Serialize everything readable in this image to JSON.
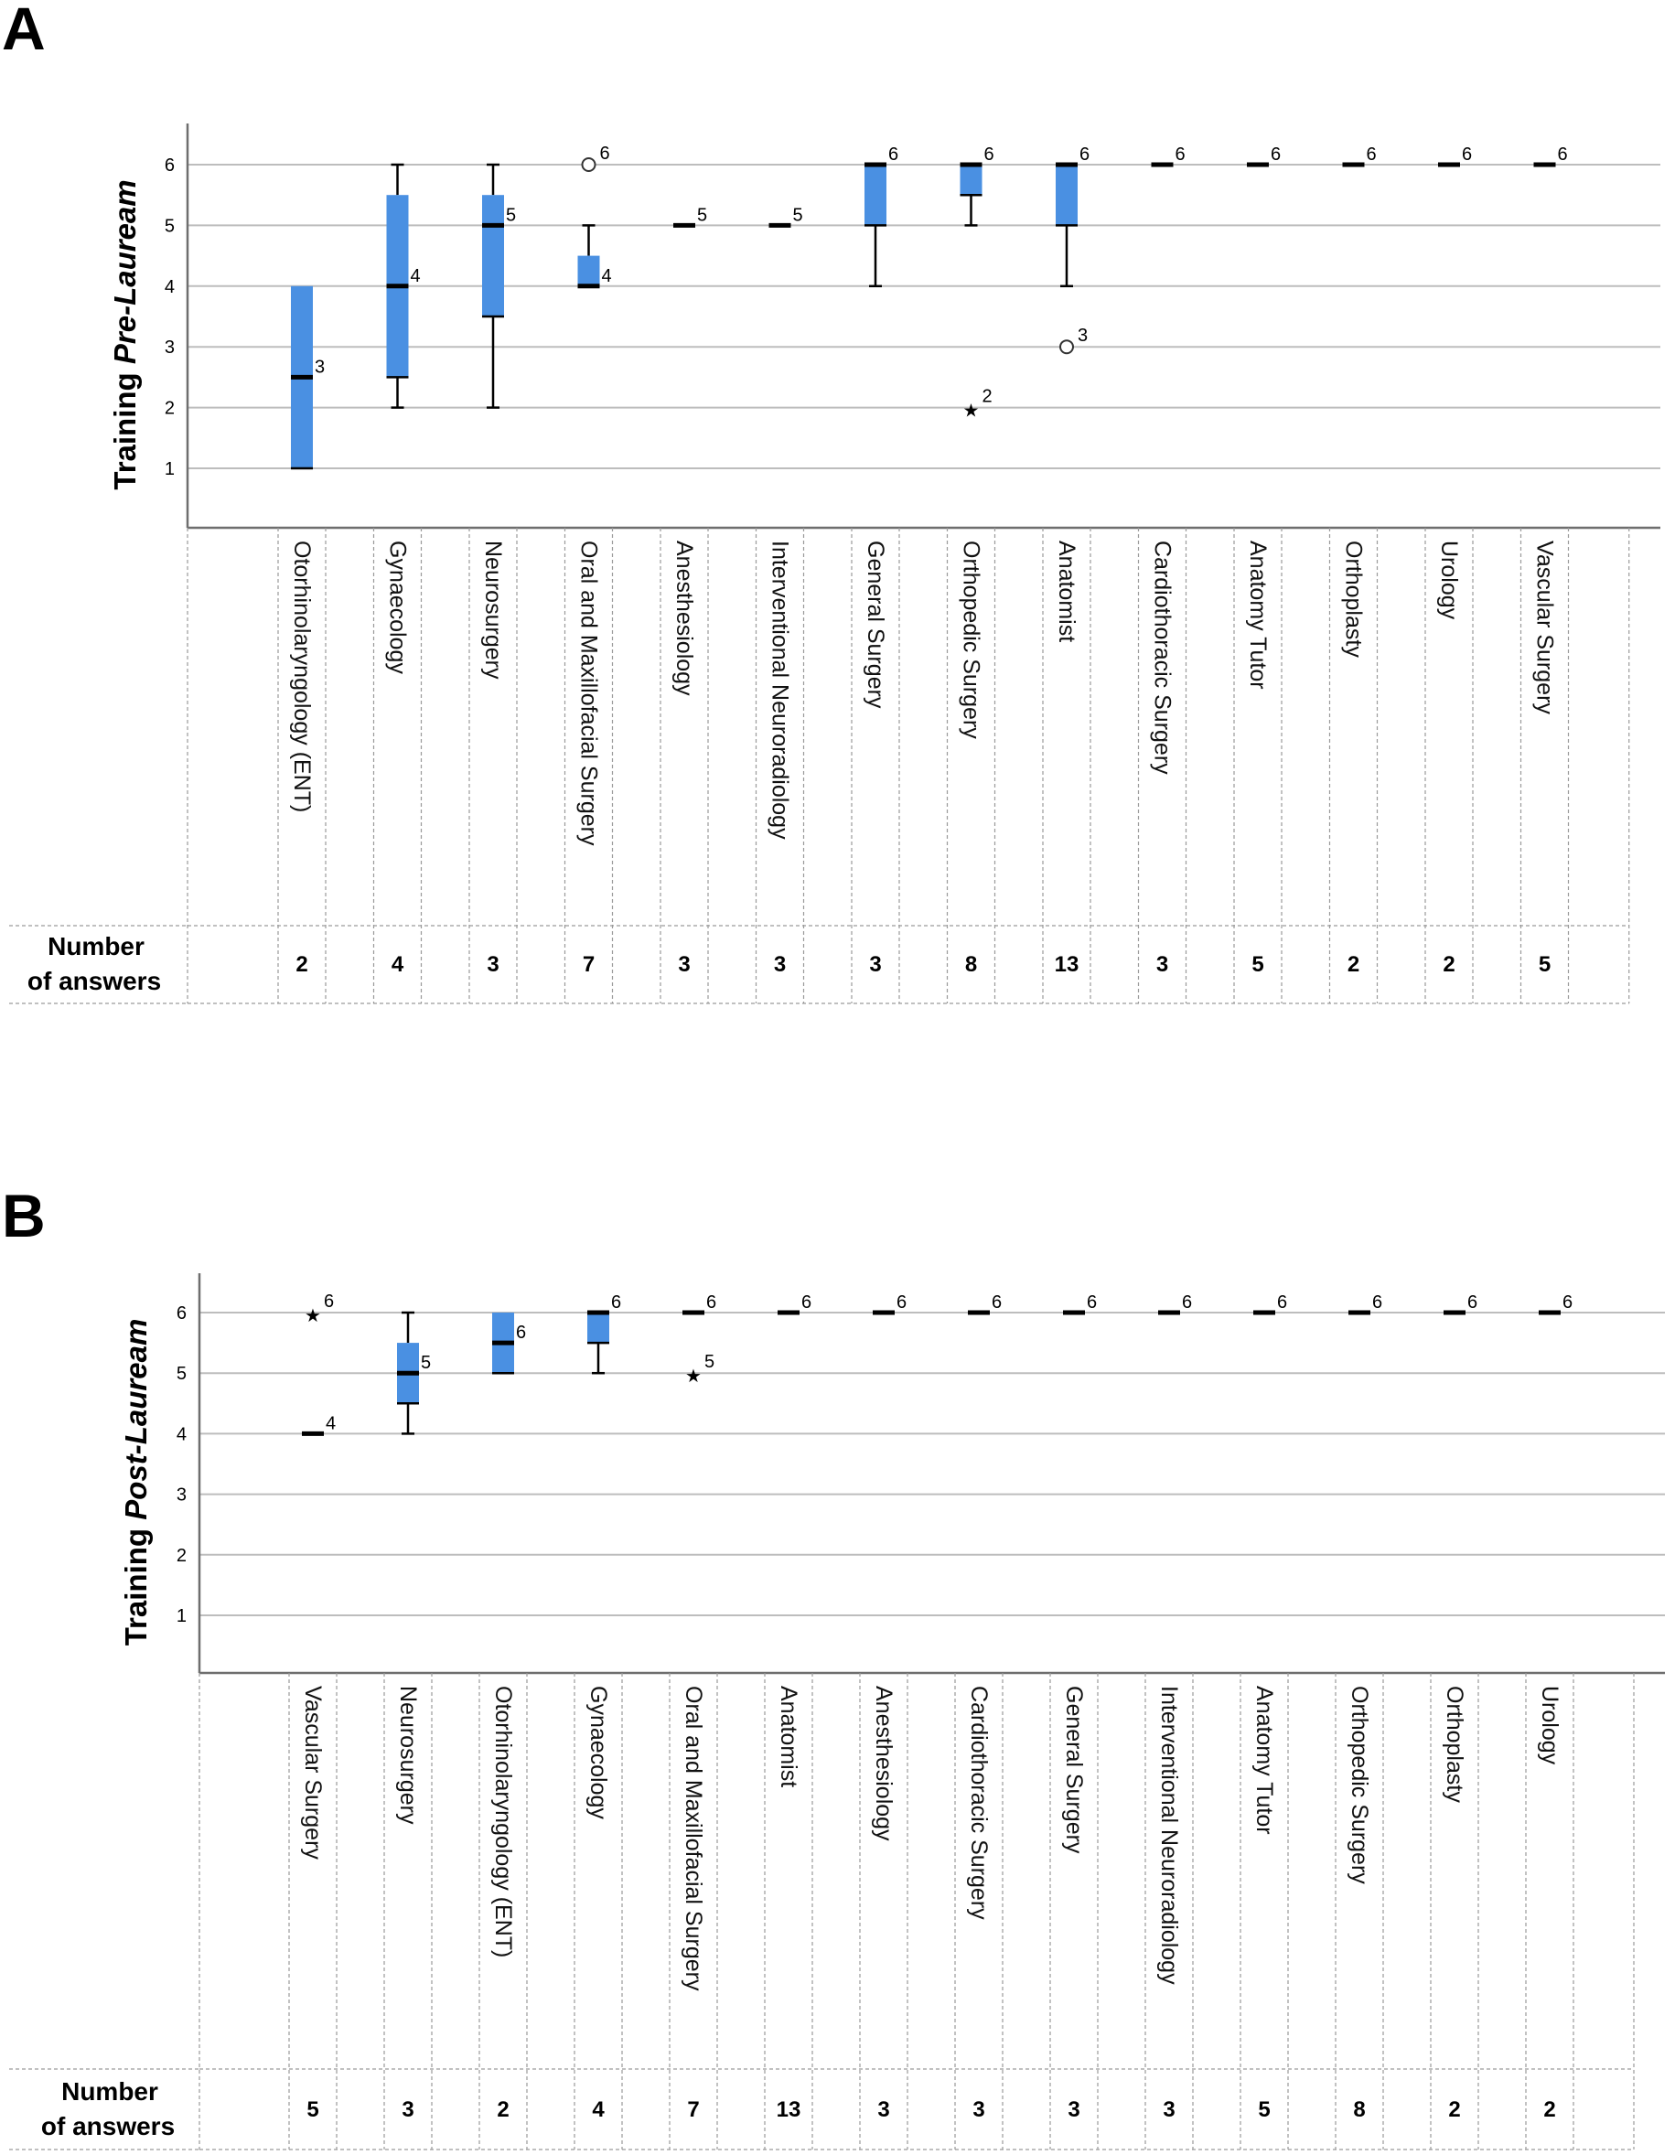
{
  "chart_data": [
    {
      "type": "boxplot",
      "panel": "A",
      "ylabel": "Training",
      "ylabel_italic": "Pre-Lauream",
      "yticks": [
        "1",
        "2",
        "3",
        "4",
        "5",
        "6"
      ],
      "ylim": [
        0,
        6.5
      ],
      "grid": true,
      "count_label_line1": "Number",
      "count_label_line2": "of answers",
      "categories": [
        {
          "name": "Otorhinolaryngology (ENT)",
          "count": "2",
          "q1": 1,
          "median": 2.5,
          "q3": 4,
          "wlo": 1,
          "whi": 4,
          "median_label": "3",
          "outliers": []
        },
        {
          "name": "Gynaecology",
          "count": "4",
          "q1": 2.5,
          "median": 4,
          "q3": 5.5,
          "wlo": 2,
          "whi": 6,
          "median_label": "4",
          "outliers": []
        },
        {
          "name": "Neurosurgery",
          "count": "3",
          "q1": 3.5,
          "median": 5,
          "q3": 5.5,
          "wlo": 2,
          "whi": 6,
          "median_label": "5",
          "outliers": []
        },
        {
          "name": "Oral and Maxillofacial Surgery",
          "count": "7",
          "q1": 4,
          "median": 4,
          "q3": 4.5,
          "wlo": 4,
          "whi": 5,
          "median_label": "4",
          "outliers": [
            {
              "value": 6,
              "shape": "circle",
              "label": "6"
            }
          ]
        },
        {
          "name": "Anesthesiology",
          "count": "3",
          "q1": 5,
          "median": 5,
          "q3": 5,
          "wlo": 5,
          "whi": 5,
          "median_label": "5",
          "outliers": []
        },
        {
          "name": "Interventional Neuroradiology",
          "count": "3",
          "q1": 5,
          "median": 5,
          "q3": 5,
          "wlo": 5,
          "whi": 5,
          "median_label": "5",
          "outliers": []
        },
        {
          "name": "General Surgery",
          "count": "3",
          "q1": 5,
          "median": 6,
          "q3": 6,
          "wlo": 4,
          "whi": 6,
          "median_label": "6",
          "outliers": []
        },
        {
          "name": "Orthopedic Surgery",
          "count": "8",
          "q1": 5.5,
          "median": 6,
          "q3": 6,
          "wlo": 5,
          "whi": 6,
          "median_label": "6",
          "outliers": [
            {
              "value": 2,
              "shape": "star",
              "label": "2"
            }
          ]
        },
        {
          "name": "Anatomist",
          "count": "13",
          "q1": 5,
          "median": 6,
          "q3": 6,
          "wlo": 4,
          "whi": 6,
          "median_label": "6",
          "outliers": [
            {
              "value": 3,
              "shape": "circle",
              "label": "3"
            }
          ]
        },
        {
          "name": "Cardiothoracic Surgery",
          "count": "3",
          "q1": 6,
          "median": 6,
          "q3": 6,
          "wlo": 6,
          "whi": 6,
          "median_label": "6",
          "outliers": []
        },
        {
          "name": "Anatomy Tutor",
          "count": "5",
          "q1": 6,
          "median": 6,
          "q3": 6,
          "wlo": 6,
          "whi": 6,
          "median_label": "6",
          "outliers": []
        },
        {
          "name": "Orthoplasty",
          "count": "2",
          "q1": 6,
          "median": 6,
          "q3": 6,
          "wlo": 6,
          "whi": 6,
          "median_label": "6",
          "outliers": []
        },
        {
          "name": "Urology",
          "count": "2",
          "q1": 6,
          "median": 6,
          "q3": 6,
          "wlo": 6,
          "whi": 6,
          "median_label": "6",
          "outliers": []
        },
        {
          "name": "Vascular Surgery",
          "count": "5",
          "q1": 6,
          "median": 6,
          "q3": 6,
          "wlo": 6,
          "whi": 6,
          "median_label": "6",
          "outliers": []
        }
      ]
    },
    {
      "type": "boxplot",
      "panel": "B",
      "ylabel": "Training",
      "ylabel_italic": "Post-Lauream",
      "yticks": [
        "1",
        "2",
        "3",
        "4",
        "5",
        "6"
      ],
      "ylim": [
        0.3,
        6.6
      ],
      "grid": true,
      "count_label_line1": "Number",
      "count_label_line2": "of answers",
      "categories": [
        {
          "name": "Vascular Surgery",
          "count": "5",
          "q1": 4,
          "median": 4,
          "q3": 4,
          "wlo": 4,
          "whi": 4,
          "median_label": "4",
          "outliers": [
            {
              "value": 6,
              "shape": "star",
              "label": "6"
            }
          ]
        },
        {
          "name": "Neurosurgery",
          "count": "3",
          "q1": 4.5,
          "median": 5,
          "q3": 5.5,
          "wlo": 4,
          "whi": 6,
          "median_label": "5",
          "outliers": []
        },
        {
          "name": "Otorhinolaryngology (ENT)",
          "count": "2",
          "q1": 5,
          "median": 5.5,
          "q3": 6,
          "wlo": 5,
          "whi": 6,
          "median_label": "6",
          "outliers": []
        },
        {
          "name": "Gynaecology",
          "count": "4",
          "q1": 5.5,
          "median": 6,
          "q3": 6,
          "wlo": 5,
          "whi": 6,
          "median_label": "6",
          "outliers": []
        },
        {
          "name": "Oral and Maxillofacial Surgery",
          "count": "7",
          "q1": 6,
          "median": 6,
          "q3": 6,
          "wlo": 6,
          "whi": 6,
          "median_label": "6",
          "outliers": [
            {
              "value": 5,
              "shape": "star",
              "label": "5"
            }
          ]
        },
        {
          "name": "Anatomist",
          "count": "13",
          "q1": 6,
          "median": 6,
          "q3": 6,
          "wlo": 6,
          "whi": 6,
          "median_label": "6",
          "outliers": []
        },
        {
          "name": "Anesthesiology",
          "count": "3",
          "q1": 6,
          "median": 6,
          "q3": 6,
          "wlo": 6,
          "whi": 6,
          "median_label": "6",
          "outliers": []
        },
        {
          "name": "Cardiothoracic Surgery",
          "count": "3",
          "q1": 6,
          "median": 6,
          "q3": 6,
          "wlo": 6,
          "whi": 6,
          "median_label": "6",
          "outliers": []
        },
        {
          "name": "General Surgery",
          "count": "3",
          "q1": 6,
          "median": 6,
          "q3": 6,
          "wlo": 6,
          "whi": 6,
          "median_label": "6",
          "outliers": []
        },
        {
          "name": "Interventional Neuroradiology",
          "count": "3",
          "q1": 6,
          "median": 6,
          "q3": 6,
          "wlo": 6,
          "whi": 6,
          "median_label": "6",
          "outliers": []
        },
        {
          "name": "Anatomy Tutor",
          "count": "5",
          "q1": 6,
          "median": 6,
          "q3": 6,
          "wlo": 6,
          "whi": 6,
          "median_label": "6",
          "outliers": []
        },
        {
          "name": "Orthopedic Surgery",
          "count": "8",
          "q1": 6,
          "median": 6,
          "q3": 6,
          "wlo": 6,
          "whi": 6,
          "median_label": "6",
          "outliers": []
        },
        {
          "name": "Orthoplasty",
          "count": "2",
          "q1": 6,
          "median": 6,
          "q3": 6,
          "wlo": 6,
          "whi": 6,
          "median_label": "6",
          "outliers": []
        },
        {
          "name": "Urology",
          "count": "2",
          "q1": 6,
          "median": 6,
          "q3": 6,
          "wlo": 6,
          "whi": 6,
          "median_label": "6",
          "outliers": []
        }
      ]
    }
  ],
  "colors": {
    "box": "#4a90e2",
    "grid": "#bdbdbd",
    "axis": "#6e6e6e"
  }
}
